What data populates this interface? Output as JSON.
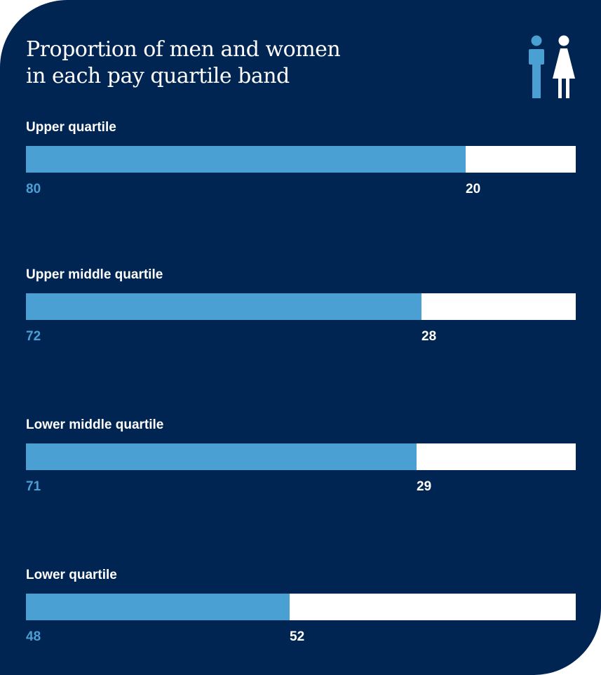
{
  "title_lines": [
    "Proportion of men and women",
    "in each pay quartile band"
  ],
  "colors": {
    "background": "#002552",
    "men": "#4a9fd3",
    "women": "#ffffff"
  },
  "icons": [
    "man-icon",
    "woman-icon"
  ],
  "chart_data": {
    "type": "bar",
    "stacked": true,
    "orientation": "horizontal",
    "title": "Proportion of men and women in each pay quartile band",
    "categories": [
      "Upper quartile",
      "Upper middle quartile",
      "Lower middle quartile",
      "Lower quartile"
    ],
    "series": [
      {
        "values": [
          80,
          72,
          71,
          48
        ]
      },
      {
        "values": [
          20,
          28,
          29,
          52
        ]
      }
    ],
    "xlim": [
      0,
      100
    ],
    "grid": false
  }
}
